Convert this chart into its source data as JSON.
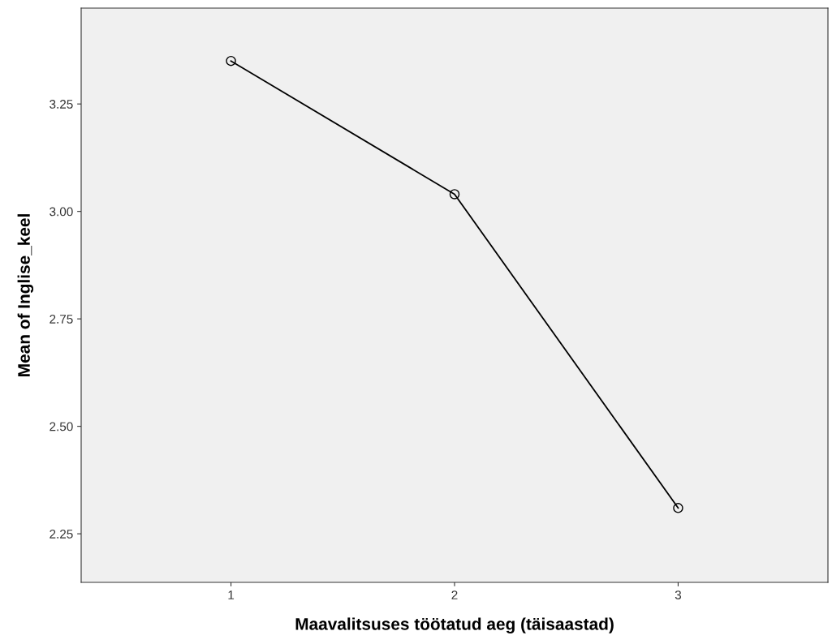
{
  "chart_data": {
    "type": "line",
    "xlabel": "Maavalitsuses töötatud aeg (täisaastad)",
    "ylabel": "Mean of Inglise_keel",
    "categories": [
      "1",
      "2",
      "3"
    ],
    "series": [
      {
        "color": "#000000",
        "values": [
          3.35,
          3.04,
          2.31
        ]
      }
    ],
    "ylim": [
      2.137,
      3.473
    ],
    "yticks": [
      {
        "value": 2.25,
        "label": "2.25"
      },
      {
        "value": 2.5,
        "label": "2.50"
      },
      {
        "value": 2.75,
        "label": "2.75"
      },
      {
        "value": 3.0,
        "label": "3.00"
      },
      {
        "value": 3.25,
        "label": "3.25"
      }
    ],
    "marker": "circle",
    "line_style": "solid",
    "grid": false,
    "legend": false
  }
}
